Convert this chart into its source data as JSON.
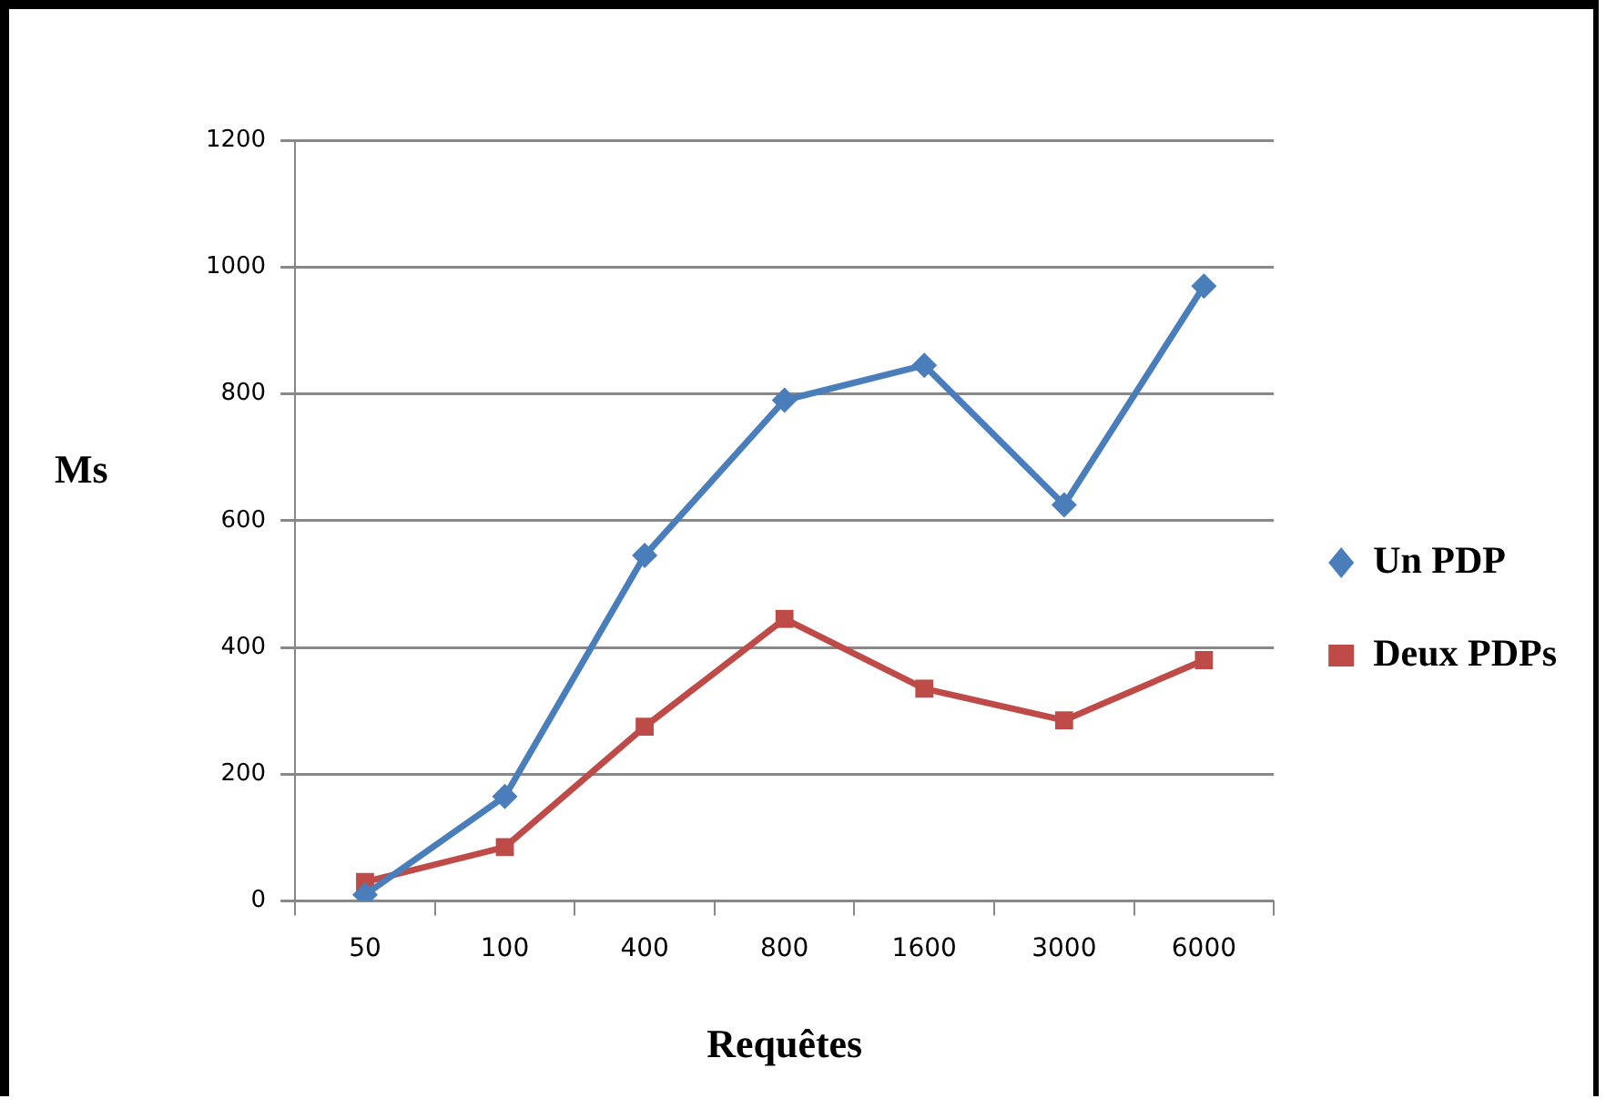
{
  "chart_data": {
    "type": "line",
    "xlabel": "Requêtes",
    "ylabel": "Ms",
    "categories": [
      "50",
      "100",
      "400",
      "800",
      "1600",
      "3000",
      "6000"
    ],
    "series": [
      {
        "name": "Un PDP",
        "color": "#4a7ebb",
        "marker": "diamond",
        "values": [
          10,
          165,
          545,
          790,
          845,
          625,
          970
        ]
      },
      {
        "name": "Deux PDPs",
        "color": "#be4b48",
        "marker": "square",
        "values": [
          30,
          85,
          275,
          445,
          335,
          285,
          380
        ]
      }
    ],
    "ylim": [
      0,
      1200
    ],
    "yticks": [
      0,
      200,
      400,
      600,
      800,
      1000,
      1200
    ],
    "grid": "y",
    "legend": "right",
    "line_style": "solid"
  }
}
